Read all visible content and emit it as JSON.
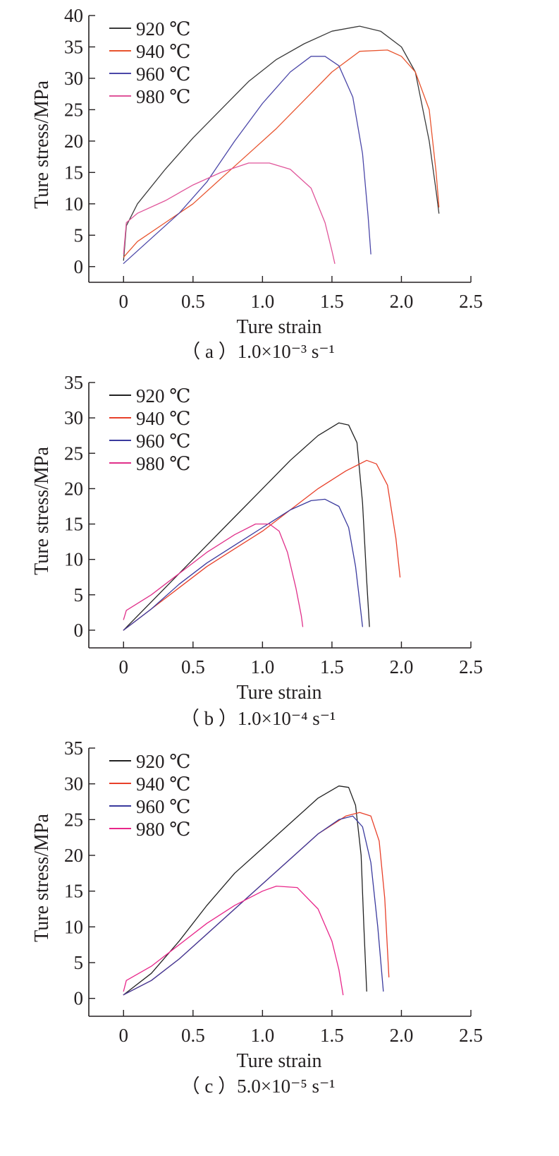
{
  "chart_data": [
    {
      "type": "line",
      "caption": "（ a ）1.0×10⁻³ s⁻¹",
      "xlabel": "Ture strain",
      "ylabel": "Ture stress/MPa",
      "xlim": [
        -0.25,
        2.5
      ],
      "ylim": [
        -2.5,
        40
      ],
      "xticks": [
        0,
        0.5,
        1.0,
        1.5,
        2.0,
        2.5
      ],
      "xtick_labels": [
        "0",
        "0.5",
        "1.0",
        "1.5",
        "2.0",
        "2.5"
      ],
      "yticks": [
        0,
        5,
        10,
        15,
        20,
        25,
        30,
        35,
        40
      ],
      "ytick_labels": [
        "0",
        "5",
        "10",
        "15",
        "20",
        "25",
        "30",
        "35",
        "40"
      ],
      "legend_position": "top-left",
      "series": [
        {
          "name": "920 ℃",
          "color": "#3a3a3a",
          "x": [
            0,
            0.02,
            0.1,
            0.3,
            0.5,
            0.7,
            0.9,
            1.1,
            1.3,
            1.5,
            1.7,
            1.85,
            2.0,
            2.1,
            2.2,
            2.25,
            2.27
          ],
          "y": [
            1,
            6.5,
            10,
            15.5,
            20.5,
            25,
            29.5,
            33,
            35.5,
            37.5,
            38.3,
            37.5,
            35,
            31,
            20,
            12,
            8.5
          ]
        },
        {
          "name": "940 ℃",
          "color": "#e8542e",
          "x": [
            0,
            0.1,
            0.3,
            0.5,
            0.7,
            0.9,
            1.1,
            1.3,
            1.5,
            1.7,
            1.9,
            2.0,
            2.1,
            2.2,
            2.25,
            2.27
          ],
          "y": [
            1.5,
            4,
            7,
            10,
            14,
            18,
            22,
            26.5,
            31,
            34.3,
            34.5,
            33.5,
            31,
            25,
            15,
            9.5
          ]
        },
        {
          "name": "960 ℃",
          "color": "#4b47a8",
          "x": [
            0,
            0.2,
            0.4,
            0.6,
            0.8,
            1.0,
            1.2,
            1.35,
            1.45,
            1.55,
            1.65,
            1.72,
            1.76,
            1.78
          ],
          "y": [
            0.5,
            4.5,
            8.5,
            13.5,
            20,
            26,
            31,
            33.5,
            33.5,
            32,
            27,
            18,
            8,
            2
          ]
        },
        {
          "name": "980 ℃",
          "color": "#e0559a",
          "x": [
            0,
            0.02,
            0.1,
            0.3,
            0.5,
            0.7,
            0.9,
            1.05,
            1.2,
            1.35,
            1.45,
            1.5,
            1.52
          ],
          "y": [
            2,
            7,
            8.5,
            10.5,
            13,
            15,
            16.5,
            16.5,
            15.5,
            12.5,
            7,
            2.5,
            0.5
          ]
        }
      ]
    },
    {
      "type": "line",
      "caption": "（ b ）1.0×10⁻⁴ s⁻¹",
      "xlabel": "Ture strain",
      "ylabel": "Ture stress/MPa",
      "xlim": [
        -0.25,
        2.5
      ],
      "ylim": [
        -2.5,
        35
      ],
      "xticks": [
        0,
        0.5,
        1.0,
        1.5,
        2.0,
        2.5
      ],
      "xtick_labels": [
        "0",
        "0.5",
        "1.0",
        "1.5",
        "2.0",
        "2.5"
      ],
      "yticks": [
        0,
        5,
        10,
        15,
        20,
        25,
        30,
        35
      ],
      "ytick_labels": [
        "0",
        "5",
        "10",
        "15",
        "20",
        "25",
        "30",
        "35"
      ],
      "legend_position": "top-left",
      "series": [
        {
          "name": "920 ℃",
          "color": "#222222",
          "x": [
            0,
            0.2,
            0.4,
            0.6,
            0.8,
            1.0,
            1.2,
            1.4,
            1.55,
            1.62,
            1.68,
            1.72,
            1.75,
            1.77
          ],
          "y": [
            0,
            4,
            8,
            12,
            16,
            20,
            24,
            27.5,
            29.3,
            29,
            26.5,
            18,
            7,
            0.5
          ]
        },
        {
          "name": "940 ℃",
          "color": "#e8402a",
          "x": [
            0,
            0.2,
            0.4,
            0.6,
            0.8,
            1.0,
            1.2,
            1.4,
            1.6,
            1.75,
            1.82,
            1.9,
            1.96,
            1.99
          ],
          "y": [
            0,
            3,
            6,
            9,
            11.5,
            14,
            17,
            20,
            22.5,
            24,
            23.5,
            20.5,
            13,
            7.5
          ]
        },
        {
          "name": "960 ℃",
          "color": "#3a3a9e",
          "x": [
            0,
            0.2,
            0.4,
            0.6,
            0.8,
            1.0,
            1.2,
            1.35,
            1.45,
            1.55,
            1.62,
            1.67,
            1.7,
            1.72
          ],
          "y": [
            0,
            3,
            6.5,
            9.5,
            12,
            14.5,
            17,
            18.3,
            18.5,
            17.5,
            14.5,
            9,
            4,
            0.5
          ]
        },
        {
          "name": "980 ℃",
          "color": "#e0308a",
          "x": [
            0,
            0.02,
            0.2,
            0.4,
            0.6,
            0.8,
            0.95,
            1.05,
            1.12,
            1.18,
            1.24,
            1.28,
            1.29
          ],
          "y": [
            1.5,
            2.8,
            5,
            8,
            11,
            13.5,
            15,
            15,
            14,
            11,
            6,
            2,
            0.5
          ]
        }
      ]
    },
    {
      "type": "line",
      "caption": "（ c ）5.0×10⁻⁵ s⁻¹",
      "xlabel": "Ture strain",
      "ylabel": "Ture stress/MPa",
      "xlim": [
        -0.25,
        2.5
      ],
      "ylim": [
        -2.5,
        35
      ],
      "xticks": [
        0,
        0.5,
        1.0,
        1.5,
        2.0,
        2.5
      ],
      "xtick_labels": [
        "0",
        "0.5",
        "1.0",
        "1.5",
        "2.0",
        "2.5"
      ],
      "yticks": [
        0,
        5,
        10,
        15,
        20,
        25,
        30,
        35
      ],
      "ytick_labels": [
        "0",
        "5",
        "10",
        "15",
        "20",
        "25",
        "30",
        "35"
      ],
      "legend_position": "top-left",
      "series": [
        {
          "name": "920 ℃",
          "color": "#222222",
          "x": [
            0,
            0.2,
            0.4,
            0.6,
            0.8,
            1.0,
            1.2,
            1.4,
            1.55,
            1.62,
            1.67,
            1.71,
            1.73,
            1.75
          ],
          "y": [
            0.5,
            3.5,
            8,
            13,
            17.5,
            21,
            24.5,
            28,
            29.7,
            29.5,
            27,
            20,
            10,
            1
          ]
        },
        {
          "name": "940 ℃",
          "color": "#e8402a",
          "x": [
            0,
            0.2,
            0.4,
            0.6,
            0.8,
            1.0,
            1.2,
            1.4,
            1.6,
            1.7,
            1.78,
            1.84,
            1.88,
            1.91
          ],
          "y": [
            0.5,
            2.5,
            5.5,
            9,
            12.5,
            16,
            19.5,
            23,
            25.5,
            26,
            25.5,
            22,
            14,
            3
          ]
        },
        {
          "name": "960 ℃",
          "color": "#3a3a9e",
          "x": [
            0,
            0.2,
            0.4,
            0.6,
            0.8,
            1.0,
            1.2,
            1.4,
            1.55,
            1.65,
            1.72,
            1.78,
            1.83,
            1.87
          ],
          "y": [
            0.5,
            2.5,
            5.5,
            9,
            12.5,
            16,
            19.5,
            23,
            25,
            25.5,
            24,
            19,
            10,
            1
          ]
        },
        {
          "name": "980 ℃",
          "color": "#e8268a",
          "x": [
            0,
            0.02,
            0.2,
            0.4,
            0.6,
            0.8,
            1.0,
            1.1,
            1.25,
            1.4,
            1.5,
            1.55,
            1.58
          ],
          "y": [
            1,
            2.5,
            4.5,
            7.5,
            10.5,
            13,
            15,
            15.7,
            15.5,
            12.5,
            8,
            4,
            0.5
          ]
        }
      ]
    }
  ]
}
